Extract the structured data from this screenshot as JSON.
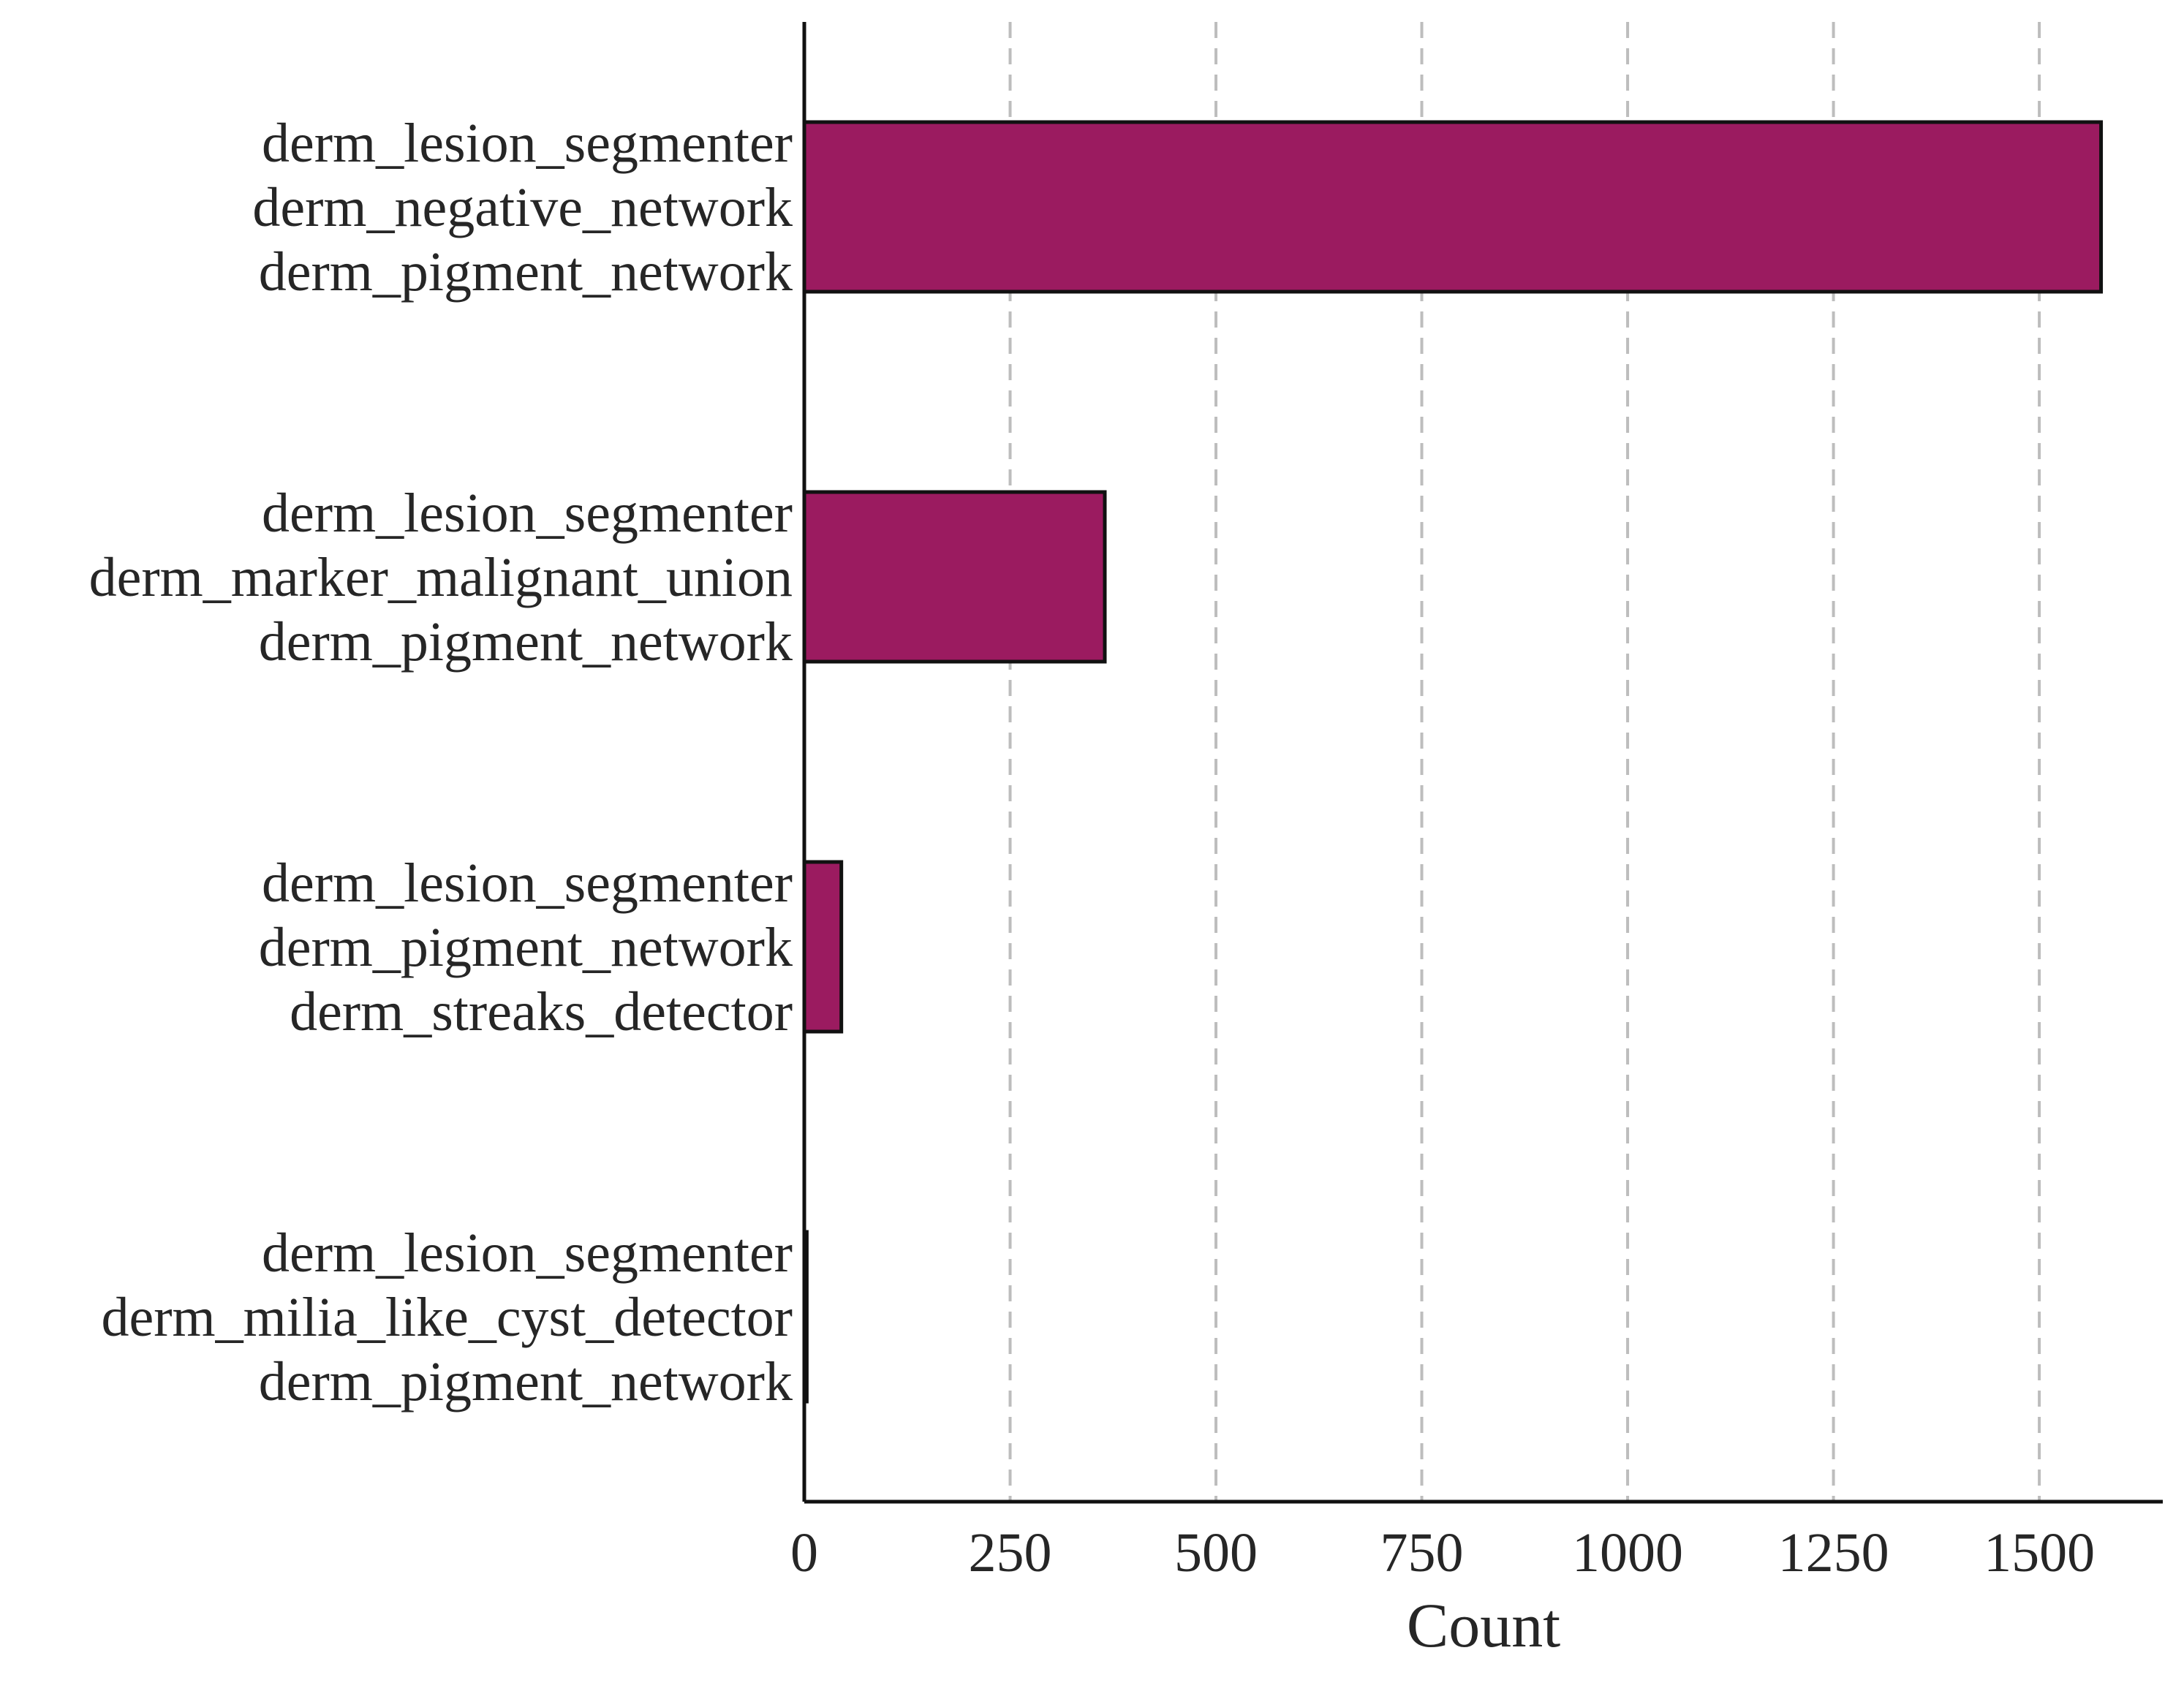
{
  "chart_data": {
    "type": "bar",
    "orientation": "horizontal",
    "categories": [
      [
        "derm_lesion_segmenter",
        "derm_negative_network",
        "derm_pigment_network"
      ],
      [
        "derm_lesion_segmenter",
        "derm_marker_malignant_union",
        "derm_pigment_network"
      ],
      [
        "derm_lesion_segmenter",
        "derm_pigment_network",
        "derm_streaks_detector"
      ],
      [
        "derm_lesion_segmenter",
        "derm_milia_like_cyst_detector",
        "derm_pigment_network"
      ]
    ],
    "values": [
      1575,
      365,
      45,
      3
    ],
    "xlabel": "Count",
    "ylabel": "",
    "xlim": [
      0,
      1650
    ],
    "xticks": [
      0,
      250,
      500,
      750,
      1000,
      1250,
      1500
    ],
    "xtick_labels": [
      "0",
      "250",
      "500",
      "750",
      "1000",
      "1250",
      "1500"
    ],
    "grid": "vertical dashed",
    "bar_color": "#9b1b60",
    "edge_color": "#111111",
    "grid_color": "#bdbdbd"
  }
}
